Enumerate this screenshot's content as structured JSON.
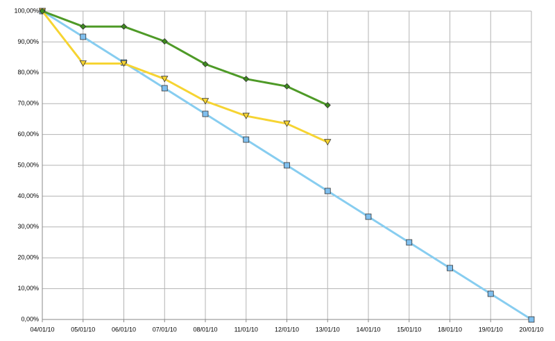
{
  "chart_data": {
    "type": "line",
    "categories": [
      "04/01/10",
      "05/01/10",
      "06/01/10",
      "07/01/10",
      "08/01/10",
      "11/01/10",
      "12/01/10",
      "13/01/10",
      "14/01/10",
      "15/01/10",
      "18/01/10",
      "19/01/10",
      "20/01/10"
    ],
    "series": [
      {
        "color": "#87cdf0",
        "marker": "square",
        "marker_color": "#7fbfee",
        "values": [
          100,
          91.67,
          83.33,
          75,
          66.67,
          58.33,
          50,
          41.67,
          33.33,
          25,
          16.67,
          8.33,
          0
        ]
      },
      {
        "color": "#f6d432",
        "marker": "triangle-down",
        "marker_color": "#f6d432",
        "values": [
          100,
          83,
          83,
          78,
          70.8,
          66,
          63.5,
          57.5,
          null,
          null,
          null,
          null,
          null
        ]
      },
      {
        "color": "#4e9a27",
        "marker": "diamond",
        "marker_color": "#3e8a1e",
        "values": [
          100,
          95,
          95,
          90.2,
          82.8,
          78,
          75.6,
          69.5,
          null,
          null,
          null,
          null,
          null
        ]
      }
    ],
    "ylim": [
      0,
      100
    ],
    "yticks": [
      {
        "value": 0,
        "label": "0,00%"
      },
      {
        "value": 10,
        "label": "10,00%"
      },
      {
        "value": 20,
        "label": "20,00%"
      },
      {
        "value": 30,
        "label": "30,00%"
      },
      {
        "value": 40,
        "label": "40,00%"
      },
      {
        "value": 50,
        "label": "50,00%"
      },
      {
        "value": 60,
        "label": "60,00%"
      },
      {
        "value": 70,
        "label": "70,00%"
      },
      {
        "value": 80,
        "label": "80,00%"
      },
      {
        "value": 90,
        "label": "90,00%"
      },
      {
        "value": 100,
        "label": "100,00%"
      }
    ],
    "grid": true
  }
}
